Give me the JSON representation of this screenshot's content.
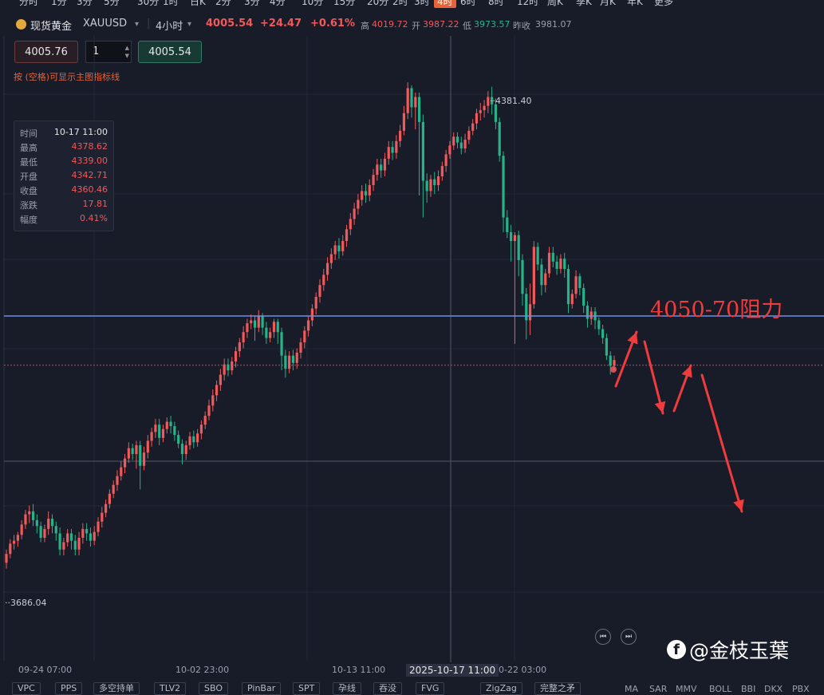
{
  "timeframes": [
    "分时",
    "1分",
    "3分",
    "5分",
    "30分",
    "1时",
    "日K",
    "2分",
    "3分",
    "4分",
    "10分",
    "15分",
    "20分",
    "2时",
    "3时",
    "4时",
    "6时",
    "8时",
    "12时",
    "周K",
    "季K",
    "月K",
    "年K",
    "更多"
  ],
  "active_timeframe_index": 15,
  "header": {
    "symbol_name": "现货黄金",
    "symbol_code": "XAUUSD",
    "dropdown_arrow": "▾",
    "period": "4小时",
    "price": "4005.54",
    "change": "+24.47",
    "change_pct": "+0.61%",
    "high_label": "高",
    "high": "4019.72",
    "open_label": "开",
    "open": "3987.22",
    "low_label": "低",
    "low": "3973.57",
    "prev_close_label": "昨收",
    "prev_close": "3981.07"
  },
  "order": {
    "sell_price": "4005.76",
    "quantity": "1",
    "buy_price": "4005.54",
    "spin_up": "▲",
    "spin_down": "▼"
  },
  "hint": "按 (空格)可显示主图指标线",
  "tooltip": {
    "rows": [
      {
        "k": "时间",
        "v": "10-17 11:00"
      },
      {
        "k": "最高",
        "v": "4378.62"
      },
      {
        "k": "最低",
        "v": "4339.00"
      },
      {
        "k": "开盘",
        "v": "4342.71"
      },
      {
        "k": "收盘",
        "v": "4360.46"
      },
      {
        "k": "涨跌",
        "v": "17.81"
      },
      {
        "k": "幅度",
        "v": "0.41%"
      }
    ]
  },
  "chart_data": {
    "type": "candlestick",
    "max_label": "4381.40",
    "min_label": "3686.04",
    "annotation": "4050-70阻力",
    "annotation_color": "#f03c3c",
    "resistance_line_value": 4066,
    "up_color": "#f05a5a",
    "down_color": "#26b38a",
    "y_range": [
      3600,
      4420
    ],
    "candles": [
      [
        3730,
        3742,
        3722,
        3748
      ],
      [
        3742,
        3756,
        3736,
        3762
      ],
      [
        3756,
        3760,
        3748,
        3768
      ],
      [
        3760,
        3768,
        3752,
        3772
      ],
      [
        3768,
        3782,
        3762,
        3788
      ],
      [
        3782,
        3796,
        3776,
        3802
      ],
      [
        3796,
        3800,
        3784,
        3808
      ],
      [
        3800,
        3788,
        3780,
        3810
      ],
      [
        3788,
        3780,
        3770,
        3796
      ],
      [
        3780,
        3764,
        3758,
        3786
      ],
      [
        3764,
        3776,
        3758,
        3782
      ],
      [
        3776,
        3790,
        3768,
        3800
      ],
      [
        3790,
        3780,
        3770,
        3796
      ],
      [
        3780,
        3770,
        3760,
        3786
      ],
      [
        3770,
        3748,
        3740,
        3778
      ],
      [
        3748,
        3758,
        3740,
        3764
      ],
      [
        3758,
        3770,
        3752,
        3776
      ],
      [
        3770,
        3760,
        3748,
        3776
      ],
      [
        3760,
        3748,
        3740,
        3768
      ],
      [
        3748,
        3764,
        3740,
        3772
      ],
      [
        3764,
        3776,
        3756,
        3784
      ],
      [
        3776,
        3770,
        3760,
        3784
      ],
      [
        3770,
        3760,
        3752,
        3778
      ],
      [
        3760,
        3772,
        3754,
        3780
      ],
      [
        3772,
        3786,
        3766,
        3792
      ],
      [
        3786,
        3798,
        3778,
        3806
      ],
      [
        3798,
        3810,
        3792,
        3816
      ],
      [
        3810,
        3824,
        3804,
        3830
      ],
      [
        3824,
        3836,
        3818,
        3842
      ],
      [
        3836,
        3848,
        3828,
        3856
      ],
      [
        3848,
        3860,
        3842,
        3868
      ],
      [
        3860,
        3872,
        3852,
        3878
      ],
      [
        3872,
        3886,
        3866,
        3894
      ],
      [
        3886,
        3878,
        3870,
        3892
      ],
      [
        3878,
        3890,
        3858,
        3896
      ],
      [
        3890,
        3862,
        3830,
        3896
      ],
      [
        3862,
        3880,
        3856,
        3888
      ],
      [
        3880,
        3896,
        3872,
        3904
      ],
      [
        3896,
        3908,
        3888,
        3914
      ],
      [
        3908,
        3918,
        3900,
        3926
      ],
      [
        3918,
        3900,
        3890,
        3926
      ],
      [
        3900,
        3912,
        3894,
        3918
      ],
      [
        3912,
        3922,
        3906,
        3928
      ],
      [
        3922,
        3916,
        3906,
        3930
      ],
      [
        3916,
        3904,
        3896,
        3922
      ],
      [
        3904,
        3892,
        3886,
        3910
      ],
      [
        3892,
        3878,
        3864,
        3898
      ],
      [
        3878,
        3890,
        3870,
        3896
      ],
      [
        3890,
        3902,
        3884,
        3908
      ],
      [
        3902,
        3894,
        3886,
        3910
      ],
      [
        3894,
        3906,
        3888,
        3912
      ],
      [
        3906,
        3918,
        3898,
        3924
      ],
      [
        3918,
        3930,
        3912,
        3936
      ],
      [
        3930,
        3944,
        3924,
        3952
      ],
      [
        3944,
        3958,
        3936,
        3966
      ],
      [
        3958,
        3972,
        3950,
        3978
      ],
      [
        3972,
        3986,
        3964,
        3994
      ],
      [
        3986,
        4000,
        3978,
        4008
      ],
      [
        4000,
        3992,
        3984,
        4008
      ],
      [
        3992,
        4004,
        3986,
        4010
      ],
      [
        4004,
        4018,
        3996,
        4024
      ],
      [
        4018,
        4030,
        4010,
        4036
      ],
      [
        4030,
        4044,
        4022,
        4052
      ],
      [
        4044,
        4056,
        4036,
        4062
      ],
      [
        4056,
        4060,
        4048,
        4068
      ],
      [
        4060,
        4050,
        4032,
        4066
      ],
      [
        4050,
        4066,
        4044,
        4074
      ],
      [
        4066,
        4050,
        4040,
        4070
      ],
      [
        4050,
        4036,
        4028,
        4058
      ],
      [
        4036,
        4044,
        4030,
        4050
      ],
      [
        4044,
        4058,
        4036,
        4062
      ],
      [
        4058,
        4044,
        4028,
        4062
      ],
      [
        4044,
        4012,
        3992,
        4050
      ],
      [
        4012,
        3994,
        3982,
        4020
      ],
      [
        3994,
        4012,
        3988,
        4018
      ],
      [
        4012,
        4002,
        3992,
        4020
      ],
      [
        4002,
        4016,
        3994,
        4022
      ],
      [
        4016,
        4030,
        4008,
        4036
      ],
      [
        4030,
        4046,
        4022,
        4052
      ],
      [
        4046,
        4060,
        4038,
        4066
      ],
      [
        4060,
        4076,
        4052,
        4082
      ],
      [
        4076,
        4092,
        4068,
        4098
      ],
      [
        4092,
        4108,
        4084,
        4116
      ],
      [
        4108,
        4122,
        4100,
        4130
      ],
      [
        4122,
        4138,
        4114,
        4146
      ],
      [
        4138,
        4150,
        4130,
        4158
      ],
      [
        4150,
        4162,
        4142,
        4168
      ],
      [
        4162,
        4154,
        4144,
        4172
      ],
      [
        4154,
        4168,
        4148,
        4176
      ],
      [
        4168,
        4184,
        4160,
        4190
      ],
      [
        4184,
        4198,
        4176,
        4206
      ],
      [
        4198,
        4212,
        4190,
        4220
      ],
      [
        4212,
        4224,
        4204,
        4232
      ],
      [
        4224,
        4236,
        4216,
        4244
      ],
      [
        4236,
        4230,
        4220,
        4246
      ],
      [
        4230,
        4244,
        4222,
        4252
      ],
      [
        4244,
        4258,
        4236,
        4266
      ],
      [
        4258,
        4272,
        4250,
        4280
      ],
      [
        4272,
        4264,
        4254,
        4280
      ],
      [
        4264,
        4280,
        4256,
        4288
      ],
      [
        4280,
        4296,
        4272,
        4304
      ],
      [
        4296,
        4288,
        4278,
        4304
      ],
      [
        4288,
        4304,
        4280,
        4312
      ],
      [
        4304,
        4318,
        4296,
        4326
      ],
      [
        4318,
        4342,
        4312,
        4352
      ],
      [
        4342,
        4376,
        4334,
        4384
      ],
      [
        4376,
        4350,
        4336,
        4380
      ],
      [
        4350,
        4364,
        4320,
        4370
      ],
      [
        4364,
        4330,
        4230,
        4370
      ],
      [
        4330,
        4250,
        4200,
        4340
      ],
      [
        4250,
        4236,
        4220,
        4260
      ],
      [
        4236,
        4252,
        4228,
        4258
      ],
      [
        4252,
        4244,
        4232,
        4262
      ],
      [
        4244,
        4256,
        4236,
        4264
      ],
      [
        4256,
        4270,
        4250,
        4276
      ],
      [
        4270,
        4286,
        4262,
        4292
      ],
      [
        4286,
        4298,
        4280,
        4304
      ],
      [
        4298,
        4310,
        4292,
        4316
      ],
      [
        4310,
        4302,
        4294,
        4316
      ],
      [
        4302,
        4294,
        4286,
        4310
      ],
      [
        4294,
        4306,
        4288,
        4314
      ],
      [
        4306,
        4318,
        4300,
        4324
      ],
      [
        4318,
        4328,
        4312,
        4334
      ],
      [
        4328,
        4342,
        4320,
        4348
      ],
      [
        4342,
        4346,
        4332,
        4356
      ],
      [
        4346,
        4352,
        4336,
        4360
      ],
      [
        4352,
        4364,
        4342,
        4372
      ],
      [
        4364,
        4354,
        4340,
        4378
      ],
      [
        4354,
        4330,
        4320,
        4362
      ],
      [
        4330,
        4284,
        4276,
        4336
      ],
      [
        4284,
        4200,
        4180,
        4290
      ],
      [
        4200,
        4180,
        4172,
        4210
      ],
      [
        4180,
        4168,
        4140,
        4190
      ],
      [
        4168,
        4176,
        4028,
        4180
      ],
      [
        4176,
        4142,
        4120,
        4182
      ],
      [
        4142,
        4096,
        4080,
        4150
      ],
      [
        4096,
        4060,
        4034,
        4104
      ],
      [
        4060,
        4082,
        4040,
        4110
      ],
      [
        4082,
        4160,
        4076,
        4168
      ],
      [
        4160,
        4136,
        4128,
        4166
      ],
      [
        4136,
        4108,
        4094,
        4144
      ],
      [
        4108,
        4124,
        4098,
        4130
      ],
      [
        4124,
        4152,
        4118,
        4160
      ],
      [
        4152,
        4140,
        4132,
        4160
      ],
      [
        4140,
        4130,
        4122,
        4148
      ],
      [
        4130,
        4144,
        4124,
        4150
      ],
      [
        4144,
        4130,
        4118,
        4152
      ],
      [
        4130,
        4082,
        4070,
        4136
      ],
      [
        4082,
        4096,
        4076,
        4102
      ],
      [
        4096,
        4120,
        4090,
        4128
      ],
      [
        4120,
        4104,
        4094,
        4124
      ],
      [
        4104,
        4080,
        4070,
        4110
      ],
      [
        4080,
        4062,
        4050,
        4086
      ],
      [
        4062,
        4072,
        4054,
        4078
      ],
      [
        4072,
        4060,
        4048,
        4078
      ],
      [
        4060,
        4048,
        4040,
        4064
      ],
      [
        4048,
        4036,
        4028,
        4054
      ],
      [
        4036,
        4012,
        4006,
        4042
      ],
      [
        4012,
        3998,
        3986,
        4018
      ],
      [
        3998,
        4006,
        3992,
        4012
      ]
    ]
  },
  "x_labels": [
    "09-24 07:00",
    "10-02 23:00",
    "10-13 11:00",
    "10-22 03:00"
  ],
  "crosshair_label": "2025-10-17 11:00",
  "indicators": [
    {
      "label": "VPC"
    },
    {
      "label": "PPS"
    },
    {
      "label": "多空持单"
    },
    {
      "label": "TLV2"
    },
    {
      "label": "SBO"
    },
    {
      "label": "PinBar"
    },
    {
      "label": "SPT"
    },
    {
      "label": "孕线"
    },
    {
      "label": "吞没"
    },
    {
      "label": "FVG"
    },
    {
      "label": "ZigZag"
    },
    {
      "label": "完整之矛"
    }
  ],
  "indicators_right": [
    "MA",
    "SAR",
    "MMV",
    "BOLL",
    "BBI",
    "DKX",
    "PBX"
  ],
  "nav": {
    "prev": "⏮",
    "next": "⏭"
  },
  "watermark": "@金枝玉葉",
  "watermark_icon": "f"
}
